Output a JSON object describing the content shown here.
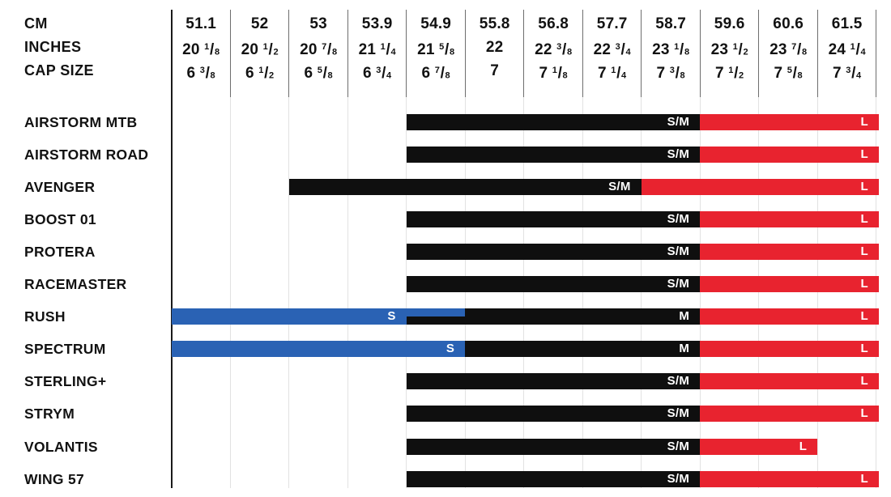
{
  "colors": {
    "black": "#0f0f0f",
    "red": "#e8232f",
    "blue": "#2a62b4",
    "grid_light": "#e2e2e2",
    "grid_dark": "#6e6e6e",
    "axis": "#1a1a1a",
    "text": "#121212",
    "bar_label": "#ffffff"
  },
  "header": {
    "row_labels": [
      {
        "key": "cm",
        "label": "CM"
      },
      {
        "key": "inches",
        "label": "INCHES"
      },
      {
        "key": "cap_size",
        "label": "CAP SIZE"
      }
    ],
    "columns": [
      {
        "cm": "51.1",
        "inches": "20 1/8",
        "cap_size": "6 3/8"
      },
      {
        "cm": "52",
        "inches": "20 1/2",
        "cap_size": "6 1/2"
      },
      {
        "cm": "53",
        "inches": "20 7/8",
        "cap_size": "6 5/8"
      },
      {
        "cm": "53.9",
        "inches": "21 1/4",
        "cap_size": "6 3/4"
      },
      {
        "cm": "54.9",
        "inches": "21 5/8",
        "cap_size": "6 7/8"
      },
      {
        "cm": "55.8",
        "inches": "22",
        "cap_size": "7"
      },
      {
        "cm": "56.8",
        "inches": "22 3/8",
        "cap_size": "7 1/8"
      },
      {
        "cm": "57.7",
        "inches": "22 3/4",
        "cap_size": "7 1/4"
      },
      {
        "cm": "58.7",
        "inches": "23 1/8",
        "cap_size": "7 3/8"
      },
      {
        "cm": "59.6",
        "inches": "23 1/2",
        "cap_size": "7 1/2"
      },
      {
        "cm": "60.6",
        "inches": "23 7/8",
        "cap_size": "7 5/8"
      },
      {
        "cm": "61.5",
        "inches": "24 1/4",
        "cap_size": "7 3/4"
      }
    ]
  },
  "rows": [
    {
      "model": "AIRSTORM MTB",
      "bars": [
        {
          "size": "S/M",
          "color": "black",
          "from": 4,
          "to": 9
        },
        {
          "size": "L",
          "color": "red",
          "from": 9,
          "to": 12
        }
      ]
    },
    {
      "model": "AIRSTORM ROAD",
      "bars": [
        {
          "size": "S/M",
          "color": "black",
          "from": 4,
          "to": 9
        },
        {
          "size": "L",
          "color": "red",
          "from": 9,
          "to": 12
        }
      ]
    },
    {
      "model": "AVENGER",
      "bars": [
        {
          "size": "S/M",
          "color": "black",
          "from": 2,
          "to": 8
        },
        {
          "size": "L",
          "color": "red",
          "from": 8,
          "to": 12
        }
      ]
    },
    {
      "model": "BOOST 01",
      "bars": [
        {
          "size": "S/M",
          "color": "black",
          "from": 4,
          "to": 9
        },
        {
          "size": "L",
          "color": "red",
          "from": 9,
          "to": 12
        }
      ]
    },
    {
      "model": "PROTERA",
      "bars": [
        {
          "size": "S/M",
          "color": "black",
          "from": 4,
          "to": 9
        },
        {
          "size": "L",
          "color": "red",
          "from": 9,
          "to": 12
        }
      ]
    },
    {
      "model": "RACEMASTER",
      "bars": [
        {
          "size": "S/M",
          "color": "black",
          "from": 4,
          "to": 9
        },
        {
          "size": "L",
          "color": "red",
          "from": 9,
          "to": 12
        }
      ]
    },
    {
      "model": "RUSH",
      "bars": [
        {
          "size": "M",
          "color": "black",
          "from": 4,
          "to": 9
        },
        {
          "size": "S",
          "color": "blue",
          "from": 0,
          "to": 4
        },
        {
          "size": "",
          "color": "blue",
          "from": 4,
          "to": 5,
          "half": "top"
        },
        {
          "size": "L",
          "color": "red",
          "from": 9,
          "to": 12
        }
      ]
    },
    {
      "model": "SPECTRUM",
      "bars": [
        {
          "size": "M",
          "color": "black",
          "from": 5,
          "to": 9
        },
        {
          "size": "S",
          "color": "blue",
          "from": 0,
          "to": 5
        },
        {
          "size": "L",
          "color": "red",
          "from": 9,
          "to": 12
        }
      ]
    },
    {
      "model": "STERLING+",
      "bars": [
        {
          "size": "S/M",
          "color": "black",
          "from": 4,
          "to": 9
        },
        {
          "size": "L",
          "color": "red",
          "from": 9,
          "to": 12
        }
      ]
    },
    {
      "model": "STRYM",
      "bars": [
        {
          "size": "S/M",
          "color": "black",
          "from": 4,
          "to": 9
        },
        {
          "size": "L",
          "color": "red",
          "from": 9,
          "to": 12
        }
      ]
    },
    {
      "model": "VOLANTIS",
      "bars": [
        {
          "size": "S/M",
          "color": "black",
          "from": 4,
          "to": 9
        },
        {
          "size": "L",
          "color": "red",
          "from": 9,
          "to": 11
        }
      ]
    },
    {
      "model": "WING 57",
      "bars": [
        {
          "size": "S/M",
          "color": "black",
          "from": 4,
          "to": 9
        },
        {
          "size": "L",
          "color": "red",
          "from": 9,
          "to": 12
        }
      ]
    }
  ],
  "chart_data": {
    "type": "range-bar",
    "x_ticks_cm": [
      51.1,
      52,
      53,
      53.9,
      54.9,
      55.8,
      56.8,
      57.7,
      58.7,
      59.6,
      60.6,
      61.5
    ],
    "x_ticks_inches": [
      "20 1/8",
      "20 1/2",
      "20 7/8",
      "21 1/4",
      "21 5/8",
      "22",
      "22 3/8",
      "22 3/4",
      "23 1/8",
      "23 1/2",
      "23 7/8",
      "24 1/4"
    ],
    "x_ticks_cap_size": [
      "6 3/8",
      "6 1/2",
      "6 5/8",
      "6 3/4",
      "6 7/8",
      "7",
      "7 1/8",
      "7 1/4",
      "7 3/8",
      "7 1/2",
      "7 5/8",
      "7 3/4"
    ],
    "grid": true,
    "legend": false,
    "series": [
      {
        "model": "AIRSTORM MTB",
        "sizes": [
          {
            "size": "S/M",
            "from_cm": 54.9,
            "to_cm": 58.7,
            "color": "black"
          },
          {
            "size": "L",
            "from_cm": 59.6,
            "to_cm": 61.5,
            "color": "red"
          }
        ]
      },
      {
        "model": "AIRSTORM ROAD",
        "sizes": [
          {
            "size": "S/M",
            "from_cm": 54.9,
            "to_cm": 58.7,
            "color": "black"
          },
          {
            "size": "L",
            "from_cm": 59.6,
            "to_cm": 61.5,
            "color": "red"
          }
        ]
      },
      {
        "model": "AVENGER",
        "sizes": [
          {
            "size": "S/M",
            "from_cm": 53.0,
            "to_cm": 57.7,
            "color": "black"
          },
          {
            "size": "L",
            "from_cm": 58.7,
            "to_cm": 61.5,
            "color": "red"
          }
        ]
      },
      {
        "model": "BOOST 01",
        "sizes": [
          {
            "size": "S/M",
            "from_cm": 54.9,
            "to_cm": 58.7,
            "color": "black"
          },
          {
            "size": "L",
            "from_cm": 59.6,
            "to_cm": 61.5,
            "color": "red"
          }
        ]
      },
      {
        "model": "PROTERA",
        "sizes": [
          {
            "size": "S/M",
            "from_cm": 54.9,
            "to_cm": 58.7,
            "color": "black"
          },
          {
            "size": "L",
            "from_cm": 59.6,
            "to_cm": 61.5,
            "color": "red"
          }
        ]
      },
      {
        "model": "RACEMASTER",
        "sizes": [
          {
            "size": "S/M",
            "from_cm": 54.9,
            "to_cm": 58.7,
            "color": "black"
          },
          {
            "size": "L",
            "from_cm": 59.6,
            "to_cm": 61.5,
            "color": "red"
          }
        ]
      },
      {
        "model": "RUSH",
        "sizes": [
          {
            "size": "S",
            "from_cm": 51.1,
            "to_cm": 54.9,
            "color": "blue"
          },
          {
            "size": "M",
            "from_cm": 54.9,
            "to_cm": 58.7,
            "color": "black"
          },
          {
            "size": "L",
            "from_cm": 59.6,
            "to_cm": 61.5,
            "color": "red"
          }
        ]
      },
      {
        "model": "SPECTRUM",
        "sizes": [
          {
            "size": "S",
            "from_cm": 51.1,
            "to_cm": 54.9,
            "color": "blue"
          },
          {
            "size": "M",
            "from_cm": 55.8,
            "to_cm": 58.7,
            "color": "black"
          },
          {
            "size": "L",
            "from_cm": 59.6,
            "to_cm": 61.5,
            "color": "red"
          }
        ]
      },
      {
        "model": "STERLING+",
        "sizes": [
          {
            "size": "S/M",
            "from_cm": 54.9,
            "to_cm": 58.7,
            "color": "black"
          },
          {
            "size": "L",
            "from_cm": 59.6,
            "to_cm": 61.5,
            "color": "red"
          }
        ]
      },
      {
        "model": "STRYM",
        "sizes": [
          {
            "size": "S/M",
            "from_cm": 54.9,
            "to_cm": 58.7,
            "color": "black"
          },
          {
            "size": "L",
            "from_cm": 59.6,
            "to_cm": 61.5,
            "color": "red"
          }
        ]
      },
      {
        "model": "VOLANTIS",
        "sizes": [
          {
            "size": "S/M",
            "from_cm": 54.9,
            "to_cm": 58.7,
            "color": "black"
          },
          {
            "size": "L",
            "from_cm": 59.6,
            "to_cm": 60.6,
            "color": "red"
          }
        ]
      },
      {
        "model": "WING 57",
        "sizes": [
          {
            "size": "S/M",
            "from_cm": 54.9,
            "to_cm": 58.7,
            "color": "black"
          },
          {
            "size": "L",
            "from_cm": 59.6,
            "to_cm": 61.5,
            "color": "red"
          }
        ]
      }
    ]
  }
}
